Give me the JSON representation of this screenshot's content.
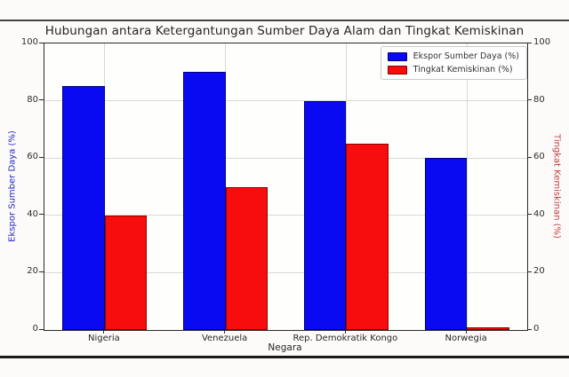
{
  "window": {
    "background": "#fcfbf9",
    "top_border_color": "#444444",
    "bottom_border_color": "#1a1a1a"
  },
  "chart_data": {
    "type": "bar",
    "title": "Hubungan antara Ketergantungan Sumber Daya Alam dan Tingkat Kemiskinan",
    "xlabel": "Negara",
    "categories": [
      "Nigeria",
      "Venezuela",
      "Rep. Demokratik Kongo",
      "Norwegia"
    ],
    "series": [
      {
        "name": "Ekspor Sumber Daya (%)",
        "key": "ekspor",
        "axis": "left",
        "color": "#0a0af2",
        "edge_color": "#000085",
        "values": [
          85,
          90,
          80,
          60
        ]
      },
      {
        "name": "Tingkat Kemiskinan (%)",
        "key": "kemiskinan",
        "axis": "right",
        "color": "#f70d0d",
        "edge_color": "#8c0000",
        "values": [
          40,
          50,
          65,
          1
        ]
      }
    ],
    "axes": {
      "left": {
        "label": "Ekspor Sumber Daya (%)",
        "color": "#2424c8",
        "range": [
          0,
          100
        ],
        "ticks": [
          0,
          20,
          40,
          60,
          80,
          100
        ]
      },
      "right": {
        "label": "Tingkat Kemiskinan (%)",
        "color": "#c24040",
        "range": [
          0,
          100
        ],
        "ticks": [
          0,
          20,
          40,
          60,
          80,
          100
        ]
      }
    },
    "bar_width_fraction": 0.35,
    "grid": true,
    "grid_color": "#d8d8d8",
    "spine_color": "#2a2a2a",
    "tick_text_color": "#2e2e2e",
    "legend_position": "upper right"
  }
}
